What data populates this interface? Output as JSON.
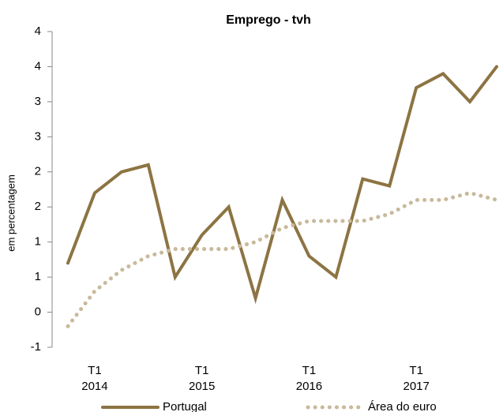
{
  "chart_data": {
    "type": "line",
    "title": "Emprego - tvh",
    "y_label": "em percentagem",
    "categories": [
      null,
      "T1 2014",
      null,
      null,
      null,
      "T1 2015",
      null,
      null,
      null,
      "T1 2016",
      null,
      null,
      null,
      "T1 2017",
      null,
      null,
      null
    ],
    "series": [
      {
        "name": "Portugal",
        "color": "#8c7443",
        "style": "solid",
        "values": [
          0.7,
          1.7,
          2.0,
          2.1,
          0.5,
          1.1,
          1.5,
          0.2,
          1.6,
          0.8,
          0.5,
          1.9,
          1.8,
          3.2,
          3.4,
          3.0,
          3.5
        ]
      },
      {
        "name": "Área do euro",
        "color": "#c9b99b",
        "style": "dotted",
        "values": [
          -0.2,
          0.3,
          0.6,
          0.8,
          0.9,
          0.9,
          0.9,
          1.0,
          1.2,
          1.3,
          1.3,
          1.3,
          1.4,
          1.6,
          1.6,
          1.7,
          1.6
        ]
      }
    ],
    "ylim": [
      -0.5,
      4.0
    ],
    "yticks": [
      {
        "value": -0.5,
        "label": "-1"
      },
      0,
      {
        "value": 0.5,
        "label": "1"
      },
      {
        "value": 1.0,
        "label": "1"
      },
      {
        "value": 1.5,
        "label": "2"
      },
      {
        "value": 2.0,
        "label": "2"
      },
      {
        "value": 2.5,
        "label": "3"
      },
      {
        "value": 3.0,
        "label": "3"
      },
      {
        "value": 3.5,
        "label": "4"
      },
      {
        "value": 4.0,
        "label": "4"
      }
    ],
    "legend": "bottom"
  }
}
